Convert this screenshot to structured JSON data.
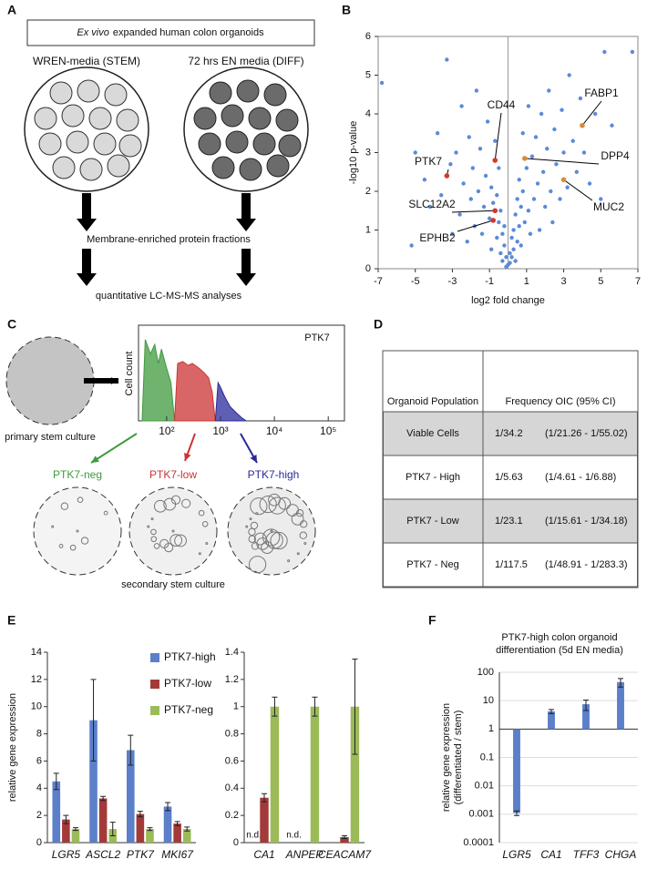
{
  "panels": [
    "A",
    "B",
    "C",
    "D",
    "E",
    "F"
  ],
  "panel_a": {
    "box_italic": "Ex vivo",
    "box_text": "expanded human colon organoids",
    "left_label": "WREN-media (STEM)",
    "right_label": "72 hrs EN media (DIFF)",
    "step_1": "Membrane-enriched protein fractions",
    "step_2": "quantitative LC-MS-MS analyses"
  },
  "panel_c": {
    "primary": "primary stem culture",
    "secondary": "secondary stem culture"
  },
  "table": {
    "header": [
      "Organoid Population",
      "Frequency OIC (95% CI)"
    ],
    "rows": [
      [
        "Viable Cells",
        "1/34.2",
        "(1/21.26 - 1/55.02)"
      ],
      [
        "PTK7 - High",
        "1/5.63",
        "(1/4.61 - 1/6.88)"
      ],
      [
        "PTK7 - Low",
        "1/23.1",
        "(1/15.61 - 1/34.18)"
      ],
      [
        "PTK7 - Neg",
        "1/117.5",
        "(1/48.91 - 1/283.3)"
      ]
    ]
  },
  "chart_data": [
    {
      "type": "scatter",
      "xlabel": "log2 fold change",
      "ylabel": "-log10 p-value",
      "color": "#5b8ad8",
      "zero_line": true,
      "xlim": [
        -7,
        7
      ],
      "ylim": [
        0,
        6
      ],
      "xticks": [
        -7,
        -5,
        -3,
        -1,
        1,
        3,
        5,
        7
      ],
      "yticks": [
        0,
        1,
        2,
        3,
        4,
        5,
        6
      ],
      "x": [
        -6.8,
        -5.2,
        -4.5,
        -4.2,
        -3.8,
        -3.6,
        -3.3,
        -3.1,
        -3.0,
        -2.8,
        -2.6,
        -2.5,
        -2.4,
        -2.2,
        -2.1,
        -2.0,
        -1.9,
        -1.8,
        -1.7,
        -1.6,
        -1.5,
        -1.4,
        -1.3,
        -1.2,
        -1.1,
        -1.0,
        -0.9,
        -0.9,
        -0.8,
        -0.7,
        -0.6,
        -0.6,
        -0.5,
        -0.5,
        -0.4,
        -0.4,
        -0.3,
        -0.3,
        -0.2,
        -0.2,
        -0.1,
        -0.1,
        0,
        0.1,
        0.1,
        0.2,
        0.2,
        0.3,
        0.3,
        0.4,
        0.4,
        0.5,
        0.5,
        0.6,
        0.6,
        0.7,
        0.7,
        0.8,
        0.8,
        0.9,
        1.0,
        1.1,
        1.1,
        1.2,
        1.3,
        1.4,
        1.5,
        1.6,
        1.7,
        1.8,
        1.9,
        2.0,
        2.1,
        2.2,
        2.3,
        2.4,
        2.5,
        2.6,
        2.8,
        2.9,
        3.0,
        3.2,
        3.3,
        3.5,
        3.7,
        3.9,
        4.1,
        4.4,
        4.7,
        5.2,
        5.6,
        6.7,
        5.0,
        -5.0
      ],
      "values": [
        4.8,
        0.6,
        2.3,
        1.6,
        3.5,
        1.9,
        5.4,
        2.7,
        0.9,
        3.0,
        1.4,
        4.2,
        2.2,
        0.7,
        3.4,
        1.8,
        2.6,
        1.1,
        4.6,
        2.0,
        3.1,
        0.9,
        1.6,
        2.4,
        3.8,
        1.3,
        0.5,
        2.1,
        1.7,
        3.3,
        0.8,
        1.9,
        1.2,
        2.6,
        0.4,
        1.5,
        0.9,
        0.2,
        0.6,
        1.1,
        0.3,
        0.05,
        0.1,
        0.4,
        0.15,
        0.8,
        0.3,
        1.0,
        0.5,
        1.4,
        0.2,
        0.7,
        1.8,
        1.1,
        2.3,
        0.6,
        1.6,
        2.0,
        3.5,
        1.2,
        2.6,
        1.5,
        4.2,
        0.9,
        2.9,
        1.8,
        3.4,
        2.2,
        1.0,
        4.0,
        2.5,
        1.6,
        3.1,
        4.6,
        2.0,
        1.2,
        3.6,
        2.7,
        1.8,
        4.1,
        3.0,
        2.1,
        5.0,
        3.3,
        2.5,
        4.4,
        3.0,
        2.2,
        4.0,
        5.6,
        3.7,
        5.6,
        1.8,
        3.0
      ],
      "annotations": [
        {
          "label": "FABP1",
          "x": 4.0,
          "y": 3.7,
          "color": "#d98b3a"
        },
        {
          "label": "CD44",
          "x": -0.7,
          "y": 2.8,
          "color": "#d03a2a"
        },
        {
          "label": "DPP4",
          "x": 0.9,
          "y": 2.85,
          "color": "#d98b3a"
        },
        {
          "label": "PTK7",
          "x": -3.3,
          "y": 2.4,
          "color": "#d03a2a"
        },
        {
          "label": "MUC2",
          "x": 3.0,
          "y": 2.3,
          "color": "#d98b3a"
        },
        {
          "label": "SLC12A2",
          "x": -0.7,
          "y": 1.5,
          "color": "#d03a2a"
        },
        {
          "label": "EPHB2",
          "x": -0.8,
          "y": 1.25,
          "color": "#d03a2a"
        }
      ]
    },
    {
      "type": "area",
      "title": "PTK7",
      "ylabel": "Cell count",
      "log_x": true,
      "xlim": [
        30,
        200000
      ],
      "ylim": [
        0,
        100
      ],
      "xticks": [
        {
          "value": 100,
          "label": "10²"
        },
        {
          "value": 1000,
          "label": "10³"
        },
        {
          "value": 10000,
          "label": "10⁴"
        },
        {
          "value": 100000,
          "label": "10⁵"
        }
      ],
      "series": [
        {
          "name": "PTK7-neg",
          "color": "#3f9a3f",
          "x": [
            35,
            40,
            50,
            60,
            70,
            80,
            100,
            120,
            140
          ],
          "values": [
            0,
            85,
            70,
            80,
            60,
            75,
            55,
            40,
            0
          ]
        },
        {
          "name": "PTK7-low",
          "color": "#cc3333",
          "x": [
            140,
            160,
            200,
            250,
            300,
            400,
            500,
            600,
            700,
            800
          ],
          "values": [
            0,
            60,
            62,
            58,
            60,
            55,
            50,
            45,
            30,
            0
          ]
        },
        {
          "name": "PTK7-high",
          "color": "#2a2a9a",
          "x": [
            800,
            900,
            1000,
            1200,
            1500,
            2000,
            2500,
            3000
          ],
          "values": [
            0,
            40,
            35,
            25,
            15,
            8,
            3,
            0
          ]
        }
      ]
    },
    {
      "type": "bar",
      "ylabel": "relative gene expression",
      "legend": "upper right",
      "categories": [
        "LGR5",
        "ASCL2",
        "PTK7",
        "MKI67"
      ],
      "ylim": [
        0,
        14
      ],
      "yticks": [
        0,
        2,
        4,
        6,
        8,
        10,
        12,
        14
      ],
      "series": [
        {
          "name": "PTK7-high",
          "color": "#5b7fc9",
          "values": [
            4.5,
            9.0,
            6.8,
            2.65
          ],
          "errors": [
            0.6,
            3.0,
            1.1,
            0.3
          ]
        },
        {
          "name": "PTK7-low",
          "color": "#a33a3a",
          "values": [
            1.7,
            3.25,
            2.1,
            1.4
          ],
          "errors": [
            0.3,
            0.15,
            0.2,
            0.15
          ]
        },
        {
          "name": "PTK7-neg",
          "color": "#9bbb59",
          "values": [
            1.0,
            1.0,
            1.0,
            1.0
          ],
          "errors": [
            0.1,
            0.5,
            0.1,
            0.15
          ]
        }
      ]
    },
    {
      "type": "bar",
      "categories": [
        "CA1",
        "ANPEP",
        "CEACAM7"
      ],
      "ylim": [
        0,
        1.4
      ],
      "yticks": [
        0,
        0.2,
        0.4,
        0.6,
        0.8,
        1,
        1.2,
        1.4
      ],
      "series": [
        {
          "color": "#5b7fc9",
          "values": [
            null,
            null,
            null
          ],
          "errors": [
            null,
            null,
            null
          ],
          "value_labels": [
            "n.d.",
            "n.d.",
            null
          ]
        },
        {
          "color": "#a33a3a",
          "values": [
            0.33,
            null,
            0.04
          ],
          "errors": [
            0.03,
            null,
            0.01
          ]
        },
        {
          "color": "#9bbb59",
          "values": [
            1.0,
            1.0,
            1.0
          ],
          "errors": [
            0.07,
            0.07,
            0.35
          ]
        }
      ]
    },
    {
      "type": "bar",
      "log_scale": true,
      "grid": true,
      "title": [
        "PTK7-high colon organoid",
        "differentiation (5d EN media)"
      ],
      "ylabel": [
        "relative gene expression",
        "(differentiated / stem)"
      ],
      "categories": [
        "LGR5",
        "CA1",
        "TFF3",
        "CHGA"
      ],
      "ylim": [
        0.0001,
        100
      ],
      "yticks": [
        0.0001,
        0.001,
        0.01,
        0.1,
        1,
        10,
        100
      ],
      "series": [
        {
          "color": "#5b7fc9",
          "values": [
            0.0011,
            4.2,
            7.5,
            45
          ],
          "errors": [
            0.0002,
            0.7,
            3,
            15
          ]
        }
      ]
    }
  ]
}
